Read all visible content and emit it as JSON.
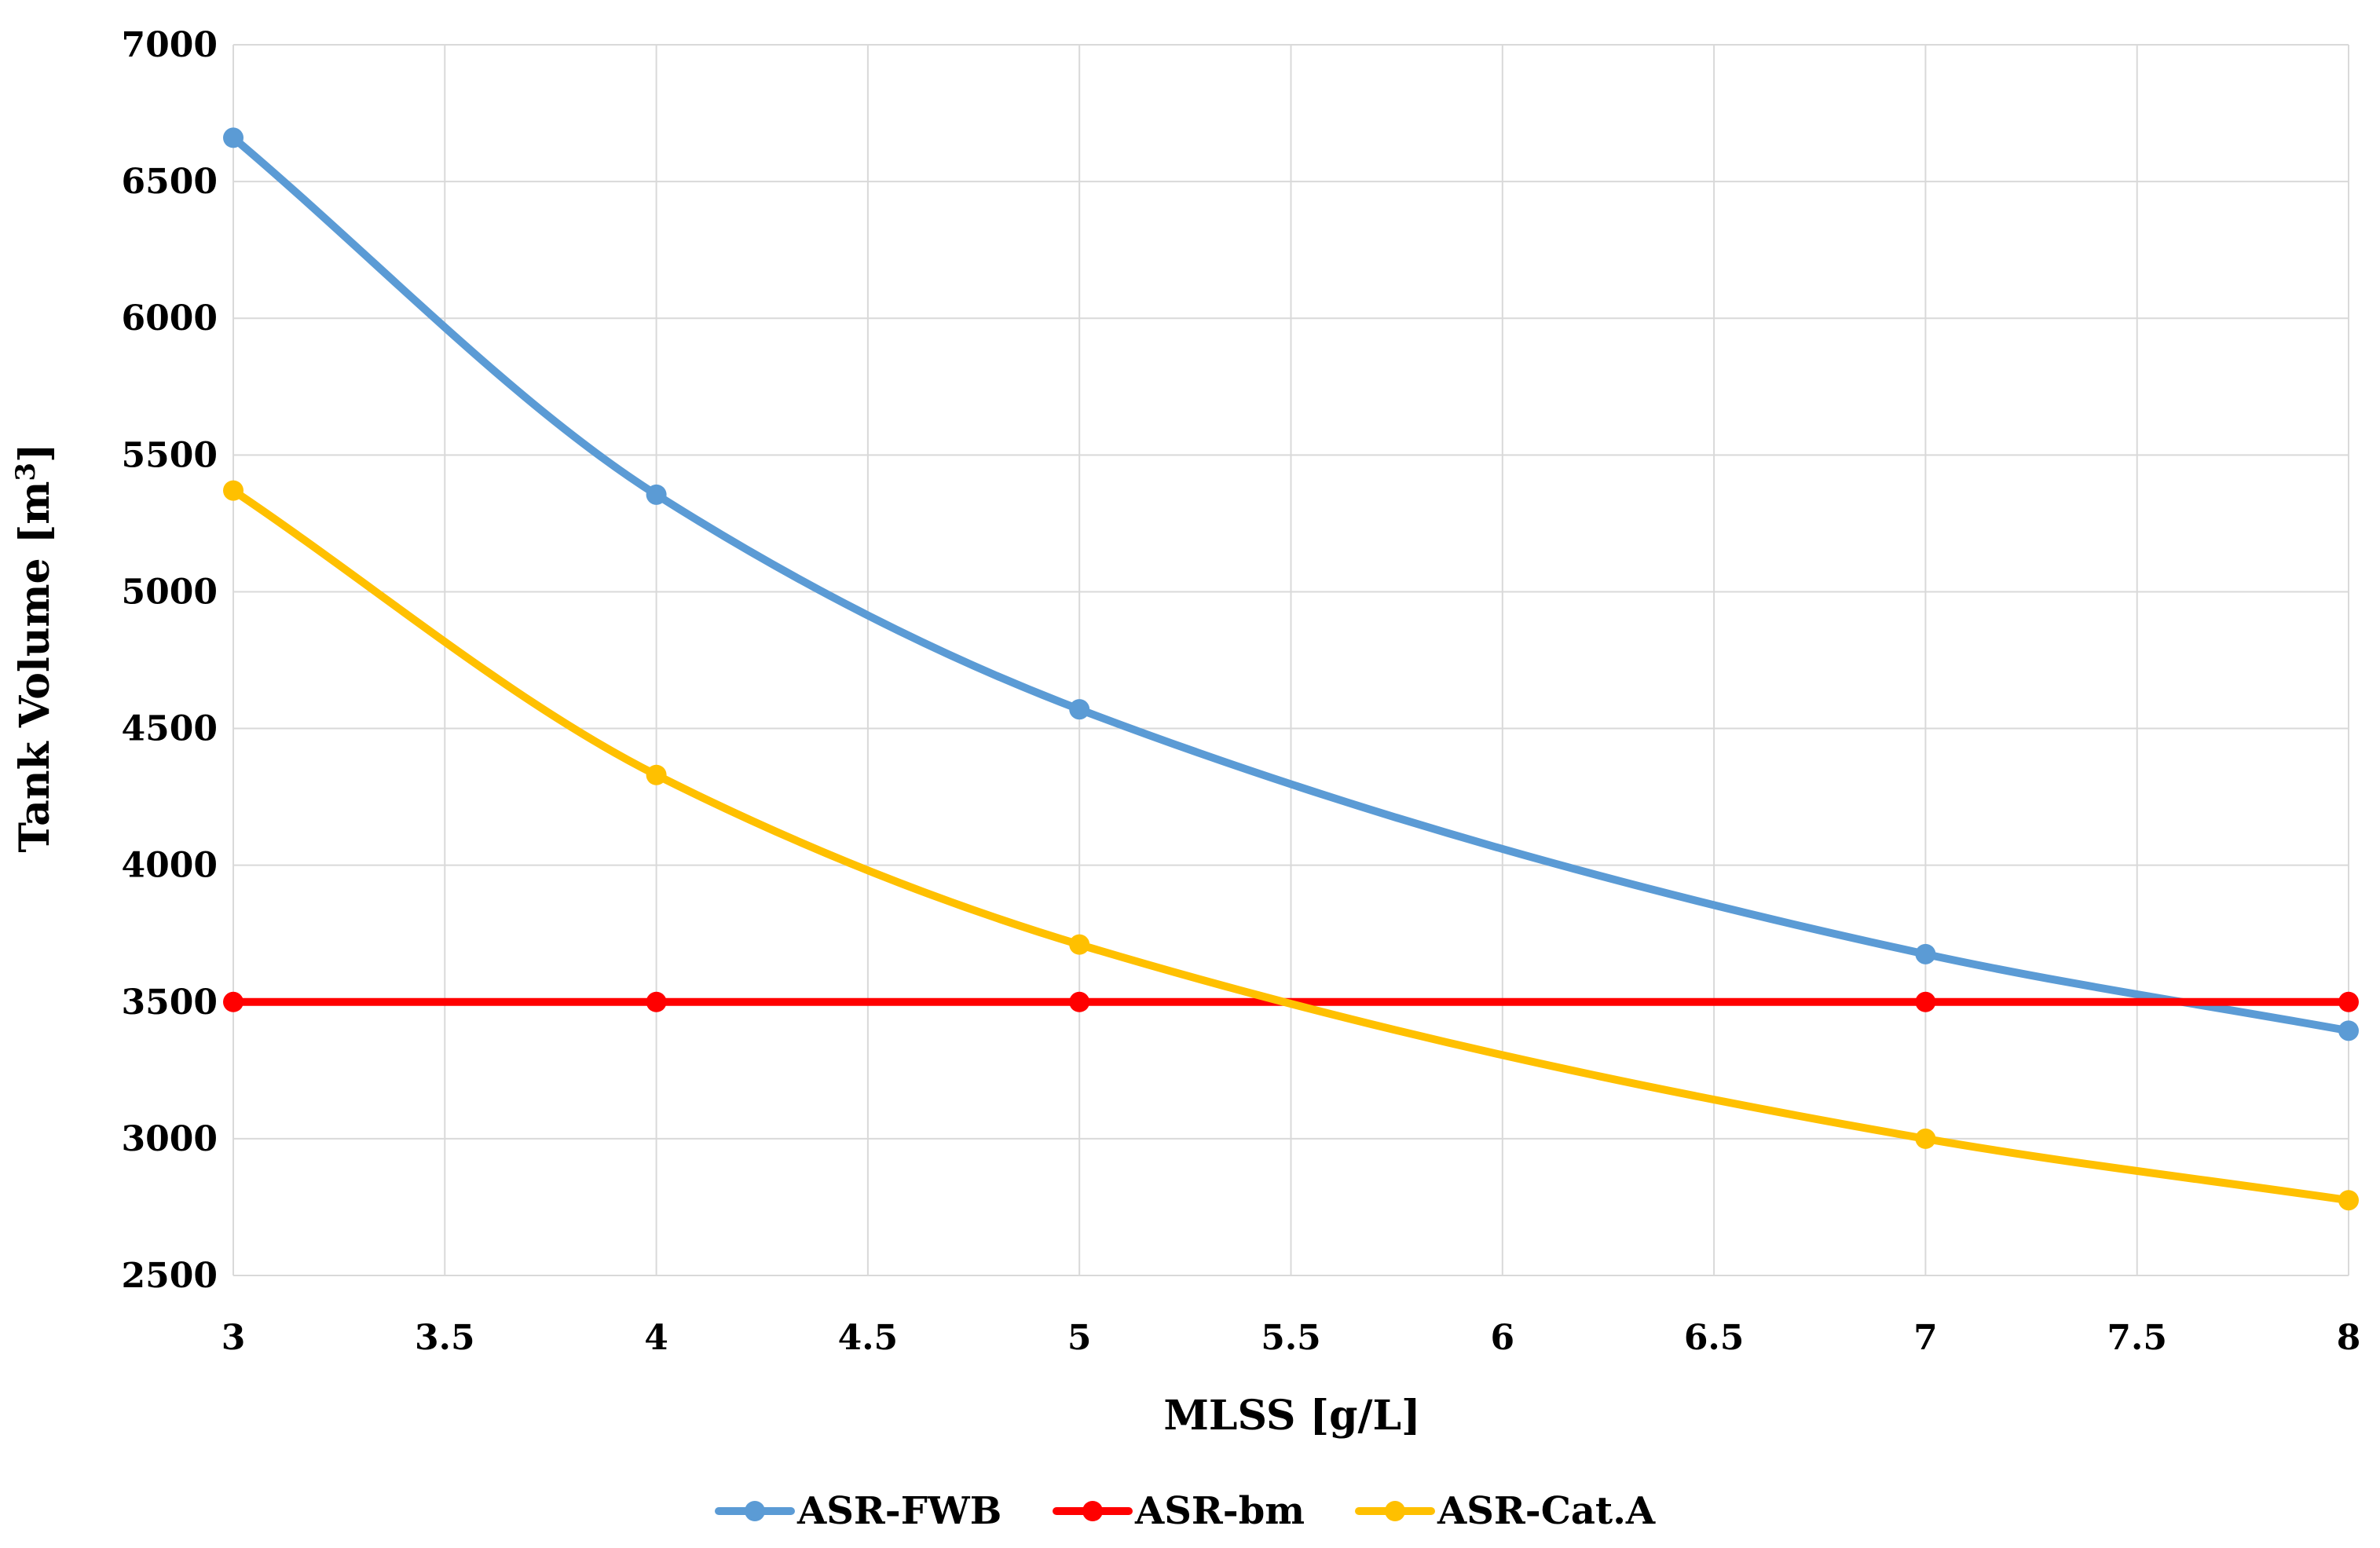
{
  "chart_data": {
    "type": "line",
    "xlabel": "MLSS [g/L]",
    "ylabel": "Tank Volume [m",
    "ylabel_sup": "3",
    "ylabel_close": "]",
    "xlim": [
      3,
      8
    ],
    "ylim": [
      2500,
      7000
    ],
    "xticks": [
      "3",
      "3.5",
      "4",
      "4.5",
      "5",
      "5.5",
      "6",
      "6.5",
      "7",
      "7.5",
      "8"
    ],
    "yticks": [
      "2500",
      "3000",
      "3500",
      "4000",
      "4500",
      "5000",
      "5500",
      "6000",
      "6500",
      "7000"
    ],
    "grid": true,
    "smooth": true,
    "legend_position": "bottom",
    "x": [
      3,
      4,
      5,
      7,
      8
    ],
    "series": [
      {
        "name": "ASR-FWB",
        "color": "#5b9bd5",
        "values": [
          6660,
          5355,
          4570,
          3675,
          3395
        ]
      },
      {
        "name": "ASR-bm",
        "color": "#ff0000",
        "values": [
          3500,
          3500,
          3500,
          3500,
          3500
        ]
      },
      {
        "name": "ASR-Cat.A",
        "color": "#ffc000",
        "values": [
          5370,
          4330,
          3710,
          3000,
          2775
        ]
      }
    ]
  }
}
